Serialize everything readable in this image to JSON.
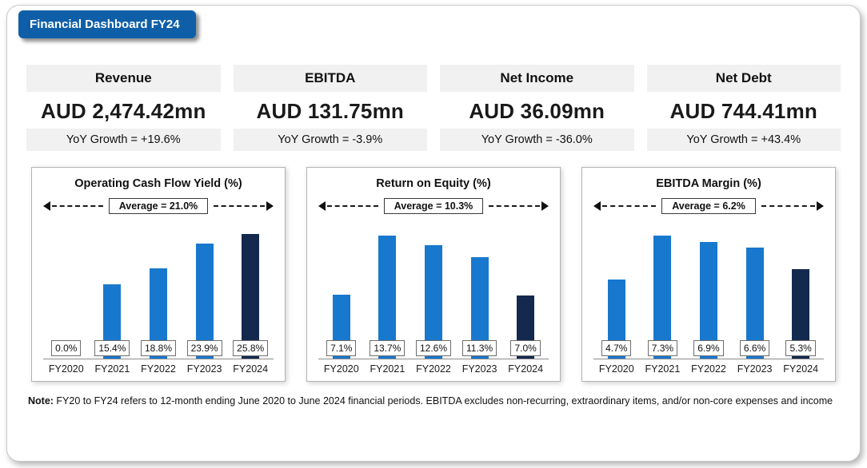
{
  "title": "Financial Dashboard FY24",
  "colors": {
    "banner": "#0f5fa8",
    "bar_primary": "#1878ce",
    "bar_highlight": "#14294e"
  },
  "kpis": [
    {
      "label": "Revenue",
      "value": "AUD 2,474.42mn",
      "growth": "YoY Growth = +19.6%"
    },
    {
      "label": "EBITDA",
      "value": "AUD 131.75mn",
      "growth": "YoY Growth = -3.9%"
    },
    {
      "label": "Net Income",
      "value": "AUD 36.09mn",
      "growth": "YoY Growth = -36.0%"
    },
    {
      "label": "Net Debt",
      "value": "AUD 744.41mn",
      "growth": "YoY Growth = +43.4%"
    }
  ],
  "chart_data": [
    {
      "type": "bar",
      "title": "Operating Cash Flow Yield (%)",
      "average": 21.0,
      "average_label": "Average = 21.0%",
      "categories": [
        "FY2020",
        "FY2021",
        "FY2022",
        "FY2023",
        "FY2024"
      ],
      "values": [
        0.0,
        15.4,
        18.8,
        23.9,
        25.8
      ],
      "value_labels": [
        "0.0%",
        "15.4%",
        "18.8%",
        "23.9%",
        "25.8%"
      ],
      "ylim": [
        0,
        28
      ],
      "highlight_last": true
    },
    {
      "type": "bar",
      "title": "Return on Equity (%)",
      "average": 10.3,
      "average_label": "Average = 10.3%",
      "categories": [
        "FY2020",
        "FY2021",
        "FY2022",
        "FY2023",
        "FY2024"
      ],
      "values": [
        7.1,
        13.7,
        12.6,
        11.3,
        7.0
      ],
      "value_labels": [
        "7.1%",
        "13.7%",
        "12.6%",
        "11.3%",
        "7.0%"
      ],
      "ylim": [
        0,
        15
      ],
      "highlight_last": true
    },
    {
      "type": "bar",
      "title": "EBITDA Margin (%)",
      "average": 6.2,
      "average_label": "Average = 6.2%",
      "categories": [
        "FY2020",
        "FY2021",
        "FY2022",
        "FY2023",
        "FY2024"
      ],
      "values": [
        4.7,
        7.3,
        6.9,
        6.6,
        5.3
      ],
      "value_labels": [
        "4.7%",
        "7.3%",
        "6.9%",
        "6.6%",
        "5.3%"
      ],
      "ylim": [
        0,
        8
      ],
      "highlight_last": true
    }
  ],
  "note": {
    "label": "Note:",
    "text": " FY20 to FY24 refers to 12-month ending June 2020 to June 2024 financial periods. EBITDA excludes non-recurring, extraordinary items, and/or non-core expenses and income"
  }
}
